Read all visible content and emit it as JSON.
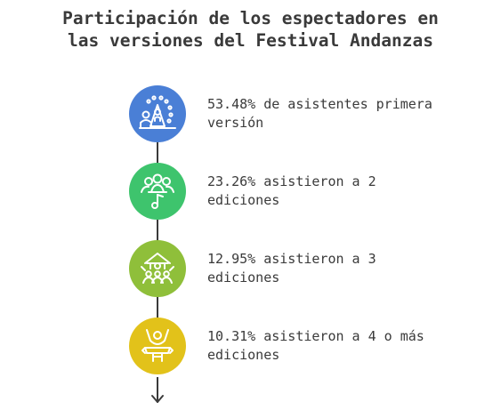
{
  "title": {
    "line1": "Participación de los espectadores en",
    "line2": "las versiones del Festival Andanzas"
  },
  "steps": [
    {
      "text_line1": "53.48% de asistentes primera",
      "text_line2": "versión",
      "color": "#4a7fd6",
      "icon": "audience-stage-icon"
    },
    {
      "text_line1": "23.26% asistieron a 2",
      "text_line2": "ediciones",
      "color": "#3ec46d",
      "icon": "group-music-note-icon"
    },
    {
      "text_line1": "12.95% asistieron a 3",
      "text_line2": "ediciones",
      "color": "#8fbf3a",
      "icon": "crowd-tent-icon"
    },
    {
      "text_line1": "10.31% asistieron a 4 o más",
      "text_line2": "ediciones",
      "color": "#e2c21a",
      "icon": "celebrating-person-icon"
    }
  ],
  "arrow_icon": "arrow-down-icon"
}
